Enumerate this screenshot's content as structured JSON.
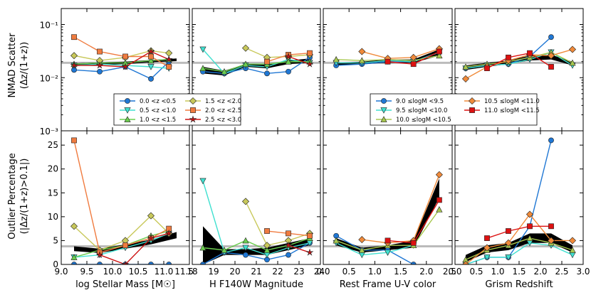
{
  "colors": {
    "bin0": "#1f77d4",
    "bin1": "#40e0d0",
    "bin2": "#6ccd4f",
    "bin3": "#c8c85a",
    "bin4": "#f07b3f",
    "bin5": "#cc1111",
    "ref_line": "#bbbbbb",
    "band": "#000000",
    "mass0": "#1f77d4",
    "mass1": "#40e0d0",
    "mass2": "#a8c850",
    "mass3": "#f08a3a",
    "mass4": "#dd1111"
  },
  "labels": {
    "top_ylabel_line1": "NMAD Scatter",
    "top_ylabel_line2": "(Δz/(1+z))",
    "bottom_ylabel_line1": "Outlier Percentage",
    "bottom_ylabel_line2": "(|Δz/(1+z)>0.1|)",
    "xlabels": [
      "log Stellar Mass [M☉]",
      "H F140W Magnitude",
      "Rest Frame U-V color",
      "Grism Redshift"
    ]
  },
  "ticks": {
    "top_y": [
      "10⁻¹",
      "10⁻²",
      "10⁻³"
    ],
    "bottom_y": [
      "25",
      "20",
      "15",
      "10",
      "5",
      "0"
    ],
    "x": [
      [
        "9.0",
        "9.5",
        "10.0",
        "10.5",
        "11.0",
        "11.5"
      ],
      [
        "18",
        "19",
        "20",
        "21",
        "22",
        "23",
        "24"
      ],
      [
        "0.0",
        "0.5",
        "1.0",
        "1.5",
        "2.0",
        "2.5"
      ],
      [
        "0.0",
        "0.5",
        "1.0",
        "1.5",
        "2.0",
        "2.5",
        "3.0"
      ]
    ]
  },
  "legend_z": [
    "0.0 <z <0.5",
    "0.5 <z <1.0",
    "1.0 <z <1.5",
    "1.5 <z <2.0",
    "2.0 <z <2.5",
    "2.5 <z <3.0"
  ],
  "legend_mass": [
    "9.0 ≤logM <9.5",
    "9.5 ≤logM <10.0",
    "10.0 ≤logM <10.5",
    "10.5 ≤logM <11.0",
    "11.0 ≤logM <11.5"
  ],
  "chart_data": [
    {
      "type": "line",
      "panel": "nmad_vs_mass",
      "title": "",
      "xlabel": "log Stellar Mass [M☉]",
      "ylabel": "NMAD Scatter (Δz/(1+z))",
      "xlim": [
        9.0,
        11.5
      ],
      "ylim": [
        0.001,
        0.2
      ],
      "yscale": "log",
      "reference_line": 0.019,
      "band": {
        "x": [
          9.25,
          9.75,
          10.25,
          10.75,
          11.25
        ],
        "low": [
          0.0165,
          0.0175,
          0.018,
          0.0195,
          0.0205
        ],
        "high": [
          0.0185,
          0.0195,
          0.02,
          0.0215,
          0.023
        ]
      },
      "series": [
        {
          "name": "0.0 <z <0.5",
          "x": [
            9.25,
            9.75,
            10.25,
            10.75,
            11.1
          ],
          "values": [
            0.014,
            0.013,
            0.016,
            0.0095,
            0.02
          ]
        },
        {
          "name": "0.5 <z <1.0",
          "x": [
            9.25,
            9.75,
            10.25,
            10.75,
            11.1
          ],
          "values": [
            0.017,
            0.018,
            0.017,
            0.016,
            0.015
          ]
        },
        {
          "name": "1.0 <z <1.5",
          "x": [
            9.25,
            9.75,
            10.25,
            10.75,
            11.1
          ],
          "values": [
            0.018,
            0.019,
            0.019,
            0.021,
            0.022
          ]
        },
        {
          "name": "1.5 <z <2.0",
          "x": [
            9.25,
            9.75,
            10.25,
            10.75,
            11.1
          ],
          "values": [
            0.026,
            0.021,
            0.024,
            0.032,
            0.029
          ]
        },
        {
          "name": "2.0 <z <2.5",
          "x": [
            9.25,
            9.75,
            10.25,
            10.75,
            11.1
          ],
          "values": [
            0.058,
            0.031,
            0.025,
            0.025,
            0.016
          ]
        },
        {
          "name": "2.5 <z <3.0",
          "x": [
            9.25,
            9.75,
            10.25,
            10.75,
            11.1
          ],
          "values": [
            0.017,
            0.017,
            0.016,
            0.031,
            0.022
          ]
        }
      ]
    },
    {
      "type": "line",
      "panel": "nmad_vs_hmag",
      "title": "",
      "xlabel": "H F140W Magnitude",
      "ylabel": "",
      "xlim": [
        18,
        24
      ],
      "ylim": [
        0.001,
        0.2
      ],
      "yscale": "log",
      "reference_line": 0.019,
      "band": {
        "x": [
          18.5,
          19.5,
          20.5,
          21.5,
          22.5,
          23.5
        ],
        "low": [
          0.012,
          0.011,
          0.016,
          0.015,
          0.018,
          0.019
        ],
        "high": [
          0.016,
          0.0135,
          0.018,
          0.0175,
          0.021,
          0.023
        ]
      },
      "series": [
        {
          "name": "0.0 <z <0.5",
          "x": [
            18.5,
            19.5,
            20.5,
            21.5,
            22.5,
            23.5
          ],
          "values": [
            0.013,
            0.012,
            0.015,
            0.012,
            0.013,
            0.024
          ]
        },
        {
          "name": "0.5 <z <1.0",
          "x": [
            18.5,
            19.5,
            20.5,
            21.5,
            22.5,
            23.5
          ],
          "values": [
            0.034,
            0.012,
            0.017,
            0.016,
            0.022,
            0.019
          ]
        },
        {
          "name": "1.0 <z <1.5",
          "x": [
            18.5,
            19.5,
            20.5,
            21.5,
            22.5,
            23.5
          ],
          "values": [
            0.015,
            0.013,
            0.018,
            0.018,
            0.02,
            0.02
          ]
        },
        {
          "name": "1.5 <z <2.0",
          "x": [
            20.5,
            21.5,
            22.5,
            23.5
          ],
          "values": [
            0.036,
            0.024,
            0.025,
            0.027
          ]
        },
        {
          "name": "2.0 <z <2.5",
          "x": [
            21.5,
            22.5,
            23.5
          ],
          "values": [
            0.02,
            0.027,
            0.029
          ]
        },
        {
          "name": "2.5 <z <3.0",
          "x": [
            22.5,
            23.5
          ],
          "values": [
            0.025,
            0.018
          ]
        }
      ]
    },
    {
      "type": "line",
      "panel": "nmad_vs_uv",
      "title": "",
      "xlabel": "Rest Frame U-V color",
      "ylabel": "",
      "xlim": [
        0.0,
        2.5
      ],
      "ylim": [
        0.001,
        0.2
      ],
      "yscale": "log",
      "reference_line": 0.019,
      "band": {
        "x": [
          0.25,
          0.75,
          1.25,
          1.75,
          2.25
        ],
        "low": [
          0.017,
          0.018,
          0.019,
          0.019,
          0.026
        ],
        "high": [
          0.019,
          0.02,
          0.022,
          0.022,
          0.034
        ]
      },
      "series": [
        {
          "name": "9.0 ≤logM <9.5",
          "x": [
            0.25,
            0.75,
            1.25,
            1.75,
            2.25
          ],
          "values": [
            0.017,
            0.018,
            0.02,
            0.02,
            0.03
          ]
        },
        {
          "name": "9.5 ≤logM <10.0",
          "x": [
            0.25,
            0.75,
            1.25,
            1.75,
            2.25
          ],
          "values": [
            0.019,
            0.019,
            0.021,
            0.02,
            0.03
          ]
        },
        {
          "name": "10.0 ≤logM <10.5",
          "x": [
            0.25,
            0.75,
            1.25,
            1.75,
            2.25
          ],
          "values": [
            0.022,
            0.021,
            0.022,
            0.021,
            0.026
          ]
        },
        {
          "name": "10.5 ≤logM <11.0",
          "x": [
            0.75,
            1.25,
            1.75,
            2.25
          ],
          "values": [
            0.031,
            0.023,
            0.024,
            0.035
          ]
        },
        {
          "name": "11.0 ≤logM <11.5",
          "x": [
            1.25,
            1.75,
            2.25
          ],
          "values": [
            0.02,
            0.018,
            0.031
          ]
        }
      ]
    },
    {
      "type": "line",
      "panel": "nmad_vs_redshift",
      "title": "",
      "xlabel": "Grism Redshift",
      "ylabel": "",
      "xlim": [
        0.0,
        3.0
      ],
      "ylim": [
        0.001,
        0.2
      ],
      "yscale": "log",
      "reference_line": 0.019,
      "band": {
        "x": [
          0.25,
          0.75,
          1.25,
          1.75,
          2.25,
          2.75
        ],
        "low": [
          0.014,
          0.016,
          0.018,
          0.021,
          0.022,
          0.017
        ],
        "high": [
          0.017,
          0.019,
          0.021,
          0.026,
          0.027,
          0.02
        ]
      },
      "series": [
        {
          "name": "9.0 ≤logM <9.5",
          "x": [
            0.25,
            0.75,
            1.25,
            1.75,
            2.25
          ],
          "values": [
            0.015,
            0.017,
            0.018,
            0.025,
            0.058
          ]
        },
        {
          "name": "9.5 ≤logM <10.0",
          "x": [
            0.25,
            0.75,
            1.25,
            1.75,
            2.25,
            2.75
          ],
          "values": [
            0.015,
            0.017,
            0.018,
            0.022,
            0.03,
            0.017
          ]
        },
        {
          "name": "10.0 ≤logM <10.5",
          "x": [
            0.25,
            0.75,
            1.25,
            1.75,
            2.25,
            2.75
          ],
          "values": [
            0.016,
            0.018,
            0.02,
            0.024,
            0.03,
            0.019
          ]
        },
        {
          "name": "10.5 ≤logM <11.0",
          "x": [
            0.25,
            0.75,
            1.25,
            1.75,
            2.25,
            2.75
          ],
          "values": [
            0.0095,
            0.016,
            0.021,
            0.027,
            0.026,
            0.034
          ]
        },
        {
          "name": "11.0 ≤logM <11.5",
          "x": [
            0.75,
            1.25,
            1.75,
            2.25
          ],
          "values": [
            0.015,
            0.024,
            0.029,
            0.016
          ]
        }
      ]
    },
    {
      "type": "line",
      "panel": "outlier_vs_mass",
      "title": "",
      "xlabel": "log Stellar Mass [M☉]",
      "ylabel": "Outlier Percentage (|Δz/(1+z)>0.1|)",
      "xlim": [
        9.0,
        11.5
      ],
      "ylim": [
        0,
        28
      ],
      "reference_line": 3.8,
      "band": {
        "x": [
          9.25,
          9.75,
          10.25,
          10.75,
          11.25
        ],
        "low": [
          2.8,
          2.4,
          3.3,
          4.2,
          5.5
        ],
        "high": [
          3.8,
          3.3,
          4.2,
          5.2,
          6.8
        ]
      },
      "series": [
        {
          "name": "0.0 <z <0.5",
          "x": [
            9.25,
            9.75,
            10.25,
            10.75,
            11.1
          ],
          "values": [
            0.0,
            0.0,
            0.0,
            0.0,
            0.0
          ]
        },
        {
          "name": "0.5 <z <1.0",
          "x": [
            9.25,
            9.75,
            10.25,
            10.75,
            11.1
          ],
          "values": [
            1.5,
            2.0,
            3.5,
            5.0,
            6.5
          ]
        },
        {
          "name": "1.0 <z <1.5",
          "x": [
            9.25,
            9.75,
            10.25,
            10.75,
            11.1
          ],
          "values": [
            1.5,
            3.0,
            4.0,
            6.0,
            7.0
          ]
        },
        {
          "name": "1.5 <z <2.0",
          "x": [
            9.25,
            9.75,
            10.25,
            10.75,
            11.1
          ],
          "values": [
            8.0,
            3.0,
            5.0,
            10.2,
            6.5
          ]
        },
        {
          "name": "2.0 <z <2.5",
          "x": [
            9.25,
            9.75,
            10.25,
            10.75,
            11.1
          ],
          "values": [
            26.0,
            2.5,
            4.0,
            5.5,
            7.5
          ]
        },
        {
          "name": "2.5 <z <3.0",
          "x": [
            9.75,
            10.25,
            10.75,
            11.1
          ],
          "values": [
            2.0,
            0.0,
            5.5,
            6.5
          ]
        }
      ]
    },
    {
      "type": "line",
      "panel": "outlier_vs_hmag",
      "title": "",
      "xlabel": "H F140W Magnitude",
      "ylabel": "",
      "xlim": [
        18,
        24
      ],
      "ylim": [
        0,
        28
      ],
      "reference_line": 3.8,
      "band": {
        "x": [
          18.5,
          19.5,
          20.5,
          21.5,
          22.5,
          23.5
        ],
        "low": [
          0.0,
          2.0,
          2.0,
          2.0,
          3.0,
          4.0
        ],
        "high": [
          8.0,
          3.2,
          3.2,
          3.5,
          4.5,
          5.5
        ]
      },
      "series": [
        {
          "name": "0.0 <z <0.5",
          "x": [
            18.5,
            19.5,
            20.5,
            21.5,
            22.5,
            23.5
          ],
          "values": [
            0.0,
            2.5,
            2.0,
            1.0,
            2.0,
            4.5
          ]
        },
        {
          "name": "0.5 <z <1.0",
          "x": [
            18.5,
            19.5,
            20.5,
            21.5,
            22.5,
            23.5
          ],
          "values": [
            17.5,
            2.5,
            3.5,
            2.0,
            3.5,
            4.5
          ]
        },
        {
          "name": "1.0 <z <1.5",
          "x": [
            18.5,
            19.5,
            20.5,
            21.5,
            22.5,
            23.5
          ],
          "values": [
            3.5,
            3.0,
            5.0,
            3.0,
            4.0,
            5.5
          ]
        },
        {
          "name": "1.5 <z <2.0",
          "x": [
            20.5,
            21.5,
            22.5,
            23.5
          ],
          "values": [
            13.2,
            4.0,
            5.0,
            6.5
          ]
        },
        {
          "name": "2.0 <z <2.5",
          "x": [
            21.5,
            22.5,
            23.5
          ],
          "values": [
            7.0,
            6.5,
            6.0
          ]
        },
        {
          "name": "2.5 <z <3.0",
          "x": [
            22.5,
            23.5
          ],
          "values": [
            4.0,
            2.5
          ]
        }
      ]
    },
    {
      "type": "line",
      "panel": "outlier_vs_uv",
      "title": "",
      "xlabel": "Rest Frame U-V color",
      "ylabel": "",
      "xlim": [
        0.0,
        2.5
      ],
      "ylim": [
        0,
        28
      ],
      "reference_line": 3.8,
      "band": {
        "x": [
          0.25,
          0.75,
          1.25,
          1.75,
          2.25
        ],
        "low": [
          4.0,
          2.5,
          3.0,
          3.5,
          14.0
        ],
        "high": [
          5.5,
          3.5,
          4.0,
          5.0,
          18.0
        ]
      },
      "series": [
        {
          "name": "9.0 ≤logM <9.5",
          "x": [
            0.25,
            0.75,
            1.25,
            1.75
          ],
          "values": [
            6.0,
            3.0,
            3.0,
            0.0
          ]
        },
        {
          "name": "9.5 ≤logM <10.0",
          "x": [
            0.25,
            0.75,
            1.25,
            1.75
          ],
          "values": [
            4.5,
            2.0,
            2.5,
            4.0
          ]
        },
        {
          "name": "10.0 ≤logM <10.5",
          "x": [
            0.25,
            0.75,
            1.25,
            1.75,
            2.25
          ],
          "values": [
            5.0,
            3.0,
            4.0,
            4.0,
            11.5
          ]
        },
        {
          "name": "10.5 ≤logM <11.0",
          "x": [
            0.75,
            1.25,
            1.75,
            2.25
          ],
          "values": [
            5.2,
            4.5,
            5.0,
            18.8
          ]
        },
        {
          "name": "11.0 ≤logM <11.5",
          "x": [
            1.25,
            1.75,
            2.25
          ],
          "values": [
            5.0,
            4.5,
            13.5
          ]
        }
      ]
    },
    {
      "type": "line",
      "panel": "outlier_vs_redshift",
      "title": "",
      "xlabel": "Grism Redshift",
      "ylabel": "",
      "xlim": [
        0.0,
        3.0
      ],
      "ylim": [
        0,
        28
      ],
      "reference_line": 3.8,
      "band": {
        "x": [
          0.25,
          0.75,
          1.25,
          1.75,
          2.25,
          2.75
        ],
        "low": [
          0.5,
          2.5,
          3.0,
          4.5,
          4.5,
          2.5
        ],
        "high": [
          2.0,
          4.0,
          4.5,
          6.5,
          6.5,
          4.0
        ]
      },
      "series": [
        {
          "name": "9.0 ≤logM <9.5",
          "x": [
            0.25,
            0.75,
            1.25,
            1.75,
            2.25
          ],
          "values": [
            0.0,
            1.5,
            1.5,
            8.0,
            26.0
          ]
        },
        {
          "name": "9.5 ≤logM <10.0",
          "x": [
            0.25,
            0.75,
            1.25,
            1.75,
            2.25,
            2.75
          ],
          "values": [
            0.0,
            1.5,
            1.5,
            4.5,
            4.0,
            2.0
          ]
        },
        {
          "name": "10.0 ≤logM <10.5",
          "x": [
            0.25,
            0.75,
            1.25,
            1.75,
            2.25,
            2.75
          ],
          "values": [
            1.0,
            3.0,
            4.0,
            5.5,
            4.5,
            3.0
          ]
        },
        {
          "name": "10.5 ≤logM <11.0",
          "x": [
            0.25,
            0.75,
            1.25,
            1.75,
            2.25,
            2.75
          ],
          "values": [
            0.0,
            3.5,
            4.5,
            10.5,
            5.0,
            5.0
          ]
        },
        {
          "name": "11.0 ≤logM <11.5",
          "x": [
            0.75,
            1.25,
            1.75,
            2.25
          ],
          "values": [
            5.5,
            7.0,
            8.0,
            8.0
          ]
        }
      ]
    }
  ]
}
